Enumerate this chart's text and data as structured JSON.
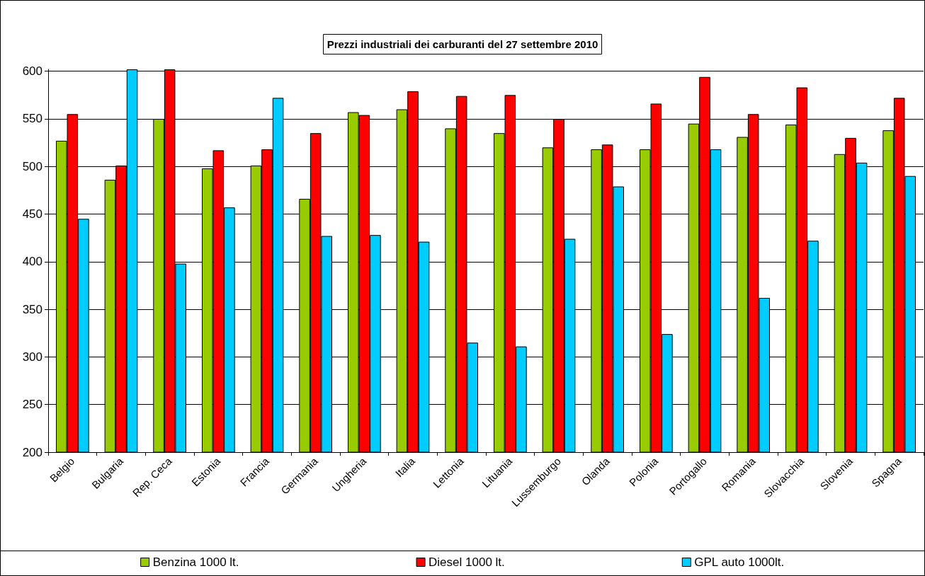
{
  "chart_data": {
    "type": "bar",
    "title": "Prezzi industriali dei carburanti del 27 settembre 2010",
    "categories": [
      "Belgio",
      "Bulgaria",
      "Rep. Ceca",
      "Estonia",
      "Francia",
      "Germania",
      "Ungheria",
      "Italia",
      "Lettonia",
      "Lituania",
      "Lussemburgo",
      "Olanda",
      "Polonia",
      "Portogallo",
      "Romania",
      "Slovacchia",
      "Slovenia",
      "Spagna"
    ],
    "series": [
      {
        "name": "Benzina 1000 lt.",
        "color": "#99cc00",
        "values": [
          527,
          486,
          550,
          498,
          501,
          466,
          557,
          560,
          540,
          535,
          520,
          518,
          518,
          545,
          531,
          544,
          513,
          538
        ]
      },
      {
        "name": "Diesel 1000 lt.",
        "color": "#ff0000",
        "values": [
          555,
          501,
          602,
          517,
          518,
          535,
          554,
          579,
          574,
          575,
          550,
          523,
          566,
          594,
          555,
          583,
          530,
          572
        ]
      },
      {
        "name": "GPL auto 1000lt.",
        "color": "#00ccff",
        "values": [
          445,
          602,
          398,
          457,
          572,
          427,
          428,
          421,
          315,
          311,
          424,
          479,
          324,
          518,
          362,
          422,
          504,
          490
        ]
      }
    ],
    "ylim": [
      200,
      602
    ],
    "yticks": [
      200,
      250,
      300,
      350,
      400,
      450,
      500,
      550,
      600
    ],
    "grid": "y",
    "legend": "bottom"
  }
}
